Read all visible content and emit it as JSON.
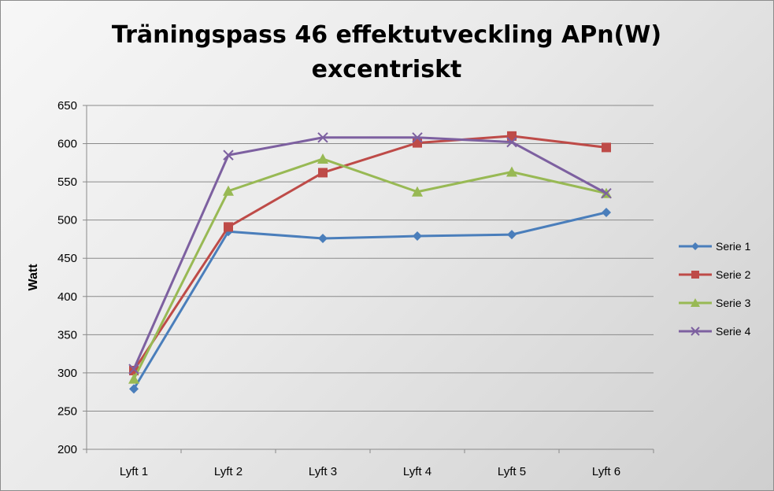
{
  "chart_data": {
    "type": "line",
    "title_line1": "Träningspass 46 effektutveckling APn(W)",
    "title_line2": "excentriskt",
    "xlabel": "",
    "ylabel": "Watt",
    "categories": [
      "Lyft 1",
      "Lyft 2",
      "Lyft 3",
      "Lyft 4",
      "Lyft 5",
      "Lyft 6"
    ],
    "ylim": [
      200,
      650
    ],
    "yticks": [
      200,
      250,
      300,
      350,
      400,
      450,
      500,
      550,
      600,
      650
    ],
    "grid": true,
    "legend_position": "right",
    "series": [
      {
        "name": "Serie 1",
        "color": "#4a7ebb",
        "marker": "diamond",
        "values": [
          279,
          485,
          476,
          479,
          481,
          510
        ]
      },
      {
        "name": "Serie 2",
        "color": "#be4b48",
        "marker": "square",
        "values": [
          303,
          491,
          562,
          601,
          610,
          595
        ]
      },
      {
        "name": "Serie 3",
        "color": "#98b954",
        "marker": "triangle",
        "values": [
          292,
          538,
          580,
          537,
          563,
          535
        ]
      },
      {
        "name": "Serie 4",
        "color": "#7d60a0",
        "marker": "x",
        "values": [
          305,
          585,
          608,
          608,
          602,
          535
        ]
      }
    ]
  }
}
